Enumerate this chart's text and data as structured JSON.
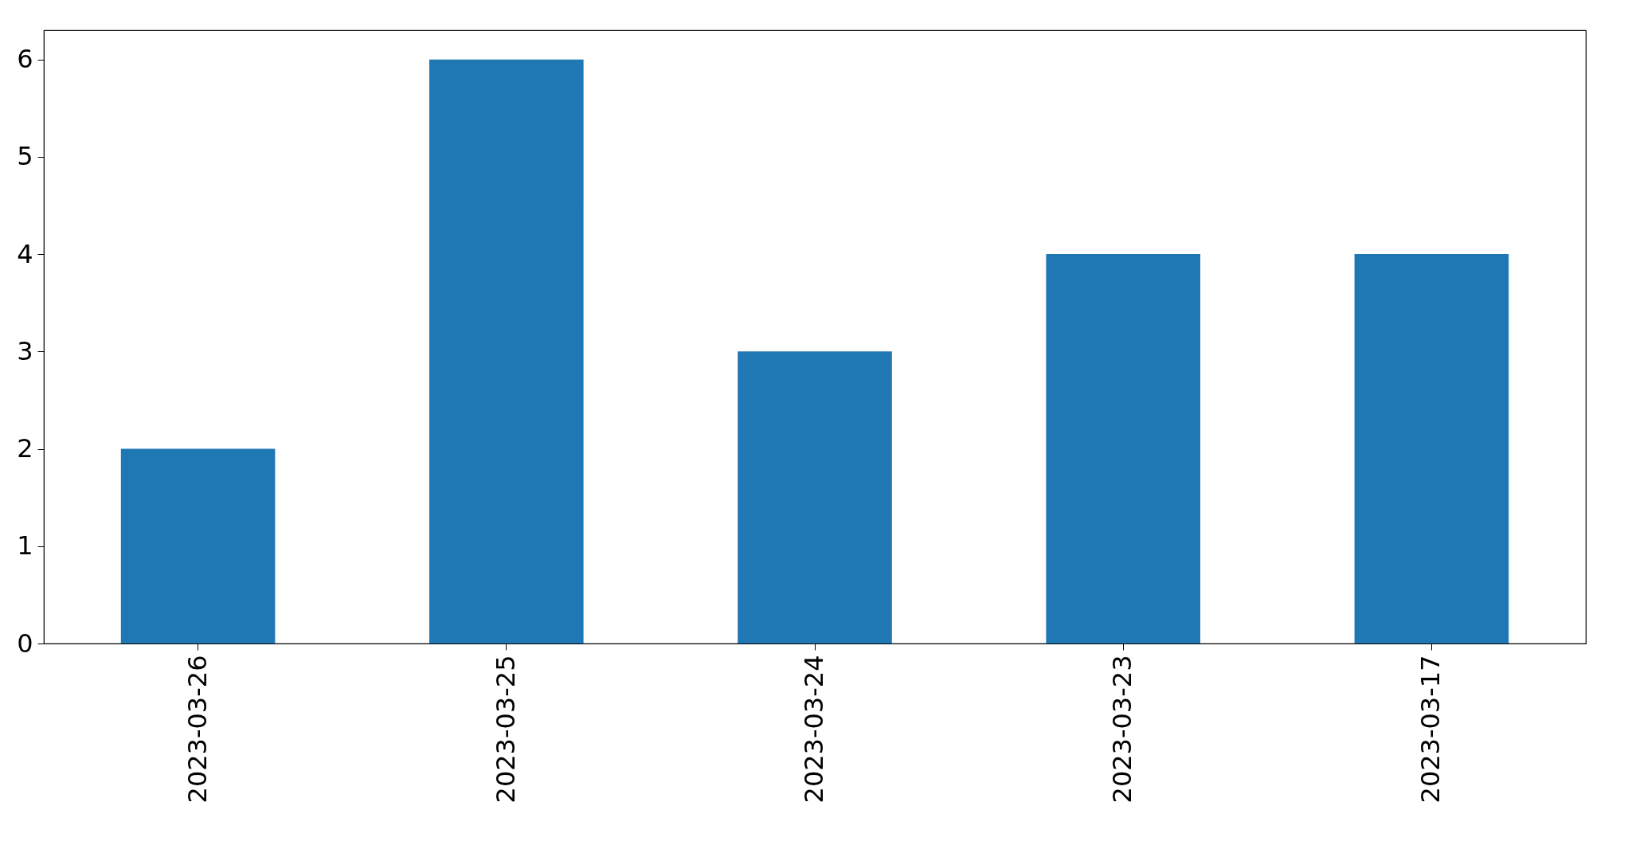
{
  "chart_data": {
    "type": "bar",
    "categories": [
      "2023-03-26",
      "2023-03-25",
      "2023-03-24",
      "2023-03-23",
      "2023-03-17"
    ],
    "values": [
      2,
      6,
      3,
      4,
      4
    ],
    "color": "#1f77b4",
    "ylim": [
      0,
      6.3
    ],
    "yticks": [
      0,
      1,
      2,
      3,
      4,
      5,
      6
    ],
    "grid": false
  }
}
